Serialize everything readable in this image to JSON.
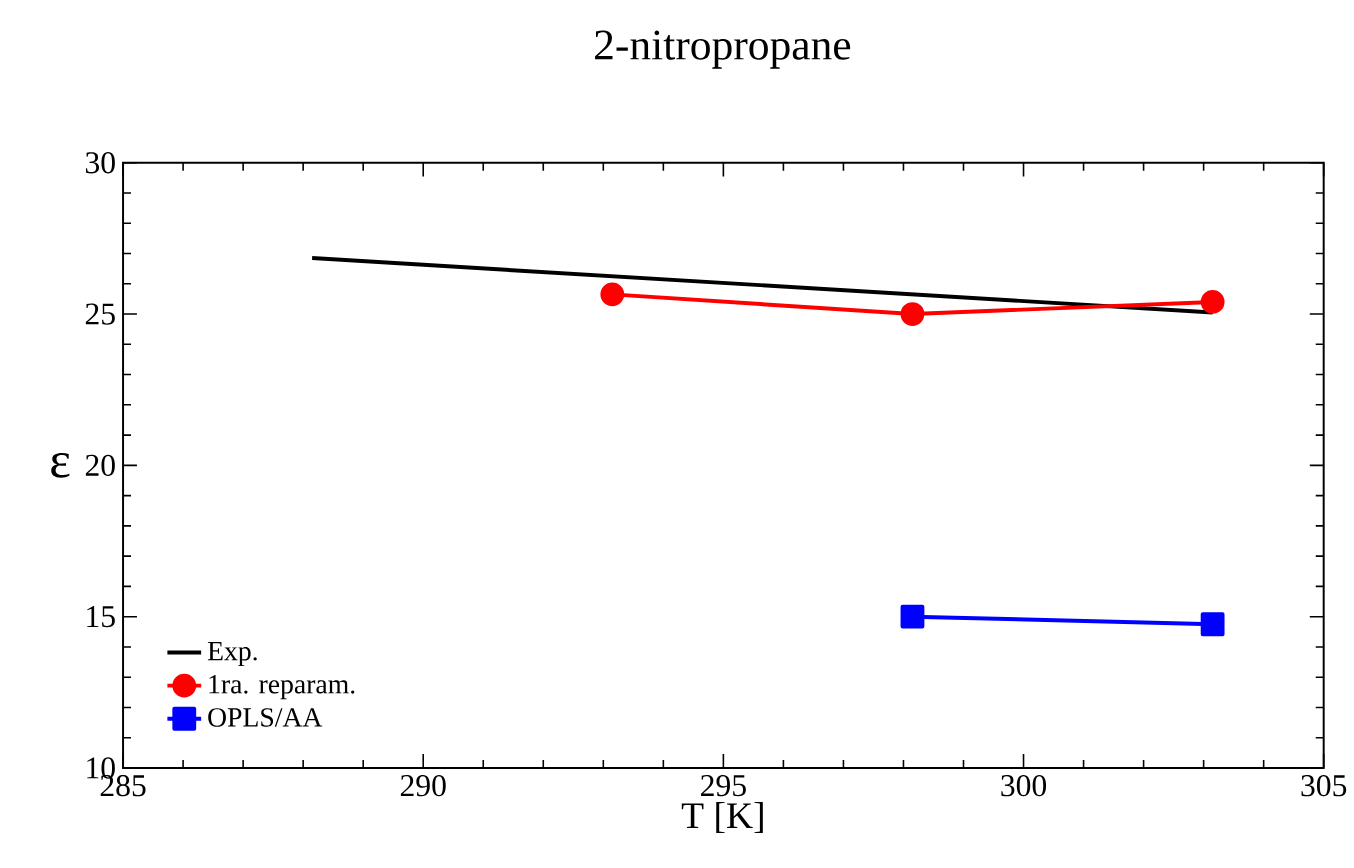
{
  "chart_data": {
    "type": "line",
    "title": "2-nitropropane",
    "xlabel": "T [K]",
    "ylabel": "ε",
    "xlim": [
      285,
      305
    ],
    "ylim": [
      10,
      30
    ],
    "xticks": [
      285,
      290,
      295,
      300,
      305
    ],
    "yticks": [
      10,
      15,
      20,
      25,
      30
    ],
    "legend": "bottom left",
    "grid": false,
    "series": [
      {
        "name": "Exp.",
        "color": "#000000",
        "marker": "none",
        "x": [
          288.15,
          303.15
        ],
        "values": [
          26.85,
          25.05
        ]
      },
      {
        "name": "1ra. reparam.",
        "color": "#ff0000",
        "marker": "circle",
        "x": [
          293.15,
          298.15,
          303.15
        ],
        "values": [
          25.65,
          25.0,
          25.4
        ]
      },
      {
        "name": "OPLS/AA",
        "color": "#0000ff",
        "marker": "square",
        "x": [
          298.15,
          303.15
        ],
        "values": [
          15.0,
          14.75
        ]
      }
    ]
  }
}
